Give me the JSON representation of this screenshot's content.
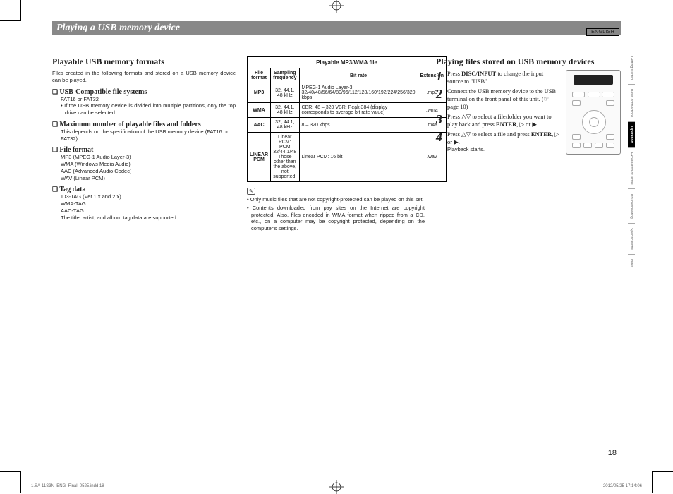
{
  "meta": {
    "lang_label": "ENGLISH",
    "page_number": "18"
  },
  "side_tabs": [
    "Getting started",
    "Basic connections",
    "Operation",
    "Explanation of terms",
    "Troubleshooting",
    "Specifications",
    "Index"
  ],
  "side_tabs_active_index": 2,
  "section_title": "Playing a USB memory device",
  "left": {
    "subhead": "Playable USB memory formats",
    "intro": "Files created in the following formats and stored on a USB memory device can be played.",
    "items": [
      {
        "head": "USB-Compatible file systems",
        "lines": [
          "FAT16 or FAT32",
          "• If the USB memory device is divided into multiple partitions, only the top drive can be selected."
        ]
      },
      {
        "head": "Maximum number of playable files and folders",
        "lines": [
          "This depends on the specification of the USB memory device (FAT16 or FAT32)."
        ]
      },
      {
        "head": "File format",
        "lines": [
          "MP3 (MPEG-1 Audio Layer-3)",
          "WMA (Windows Media Audio)",
          "AAC (Advanced Audio Codec)",
          "WAV (Linear PCM)"
        ]
      },
      {
        "head": "Tag data",
        "lines": [
          "ID3-TAG (Ver.1.x and 2.x)",
          "WMA-TAG",
          "AAC-TAG",
          "The title, artist, and album tag data are supported."
        ]
      }
    ]
  },
  "table": {
    "title": "Playable MP3/WMA file",
    "headers": [
      "File format",
      "Sampling frequency",
      "Bit rate",
      "Extension"
    ],
    "rows": [
      [
        "MP3",
        "32, 44.1, 48 kHz",
        "MPEG-1 Audio Layer-3, 32/40/48/56/64/80/96/112/128/160/192/224/256/320 kbps",
        ".mp3"
      ],
      [
        "WMA",
        "32, 44.1, 48 kHz",
        "CBR: 48 – 320 VBR: Peak 384 (display corresponds to average bit rate value)",
        ".wma"
      ],
      [
        "AAC",
        "32, 44.1, 48 kHz",
        "8 – 320 kbps",
        ".m4a"
      ],
      [
        "LINEAR PCM",
        "Linear PCM: PCM 32/44.1/48 Those other than the above, not supported.",
        "Linear PCM: 16 bit",
        ".wav"
      ]
    ]
  },
  "notes": [
    "• Only music files that are not copyright-protected can be played on this set.",
    "• Contents downloaded from pay sites on the Internet are copyright protected. Also, files encoded in WMA format when ripped from a CD, etc., on a computer may be copyright protected, depending on the computer's settings."
  ],
  "right": {
    "subhead": "Playing files stored on USB memory devices",
    "steps": [
      {
        "n": "1",
        "body": "Press <b>DISC/INPUT</b> to change the input source to \"USB\"."
      },
      {
        "n": "2",
        "body": "Connect the USB memory device to the USB terminal on the front panel of this unit. (☞page 10)"
      },
      {
        "n": "3",
        "body": "Press △▽ to select a file/folder you want to play back and press <b>ENTER</b>, ▷ or ▶."
      },
      {
        "n": "4",
        "body": "Press △▽ to select a file and press <b>ENTER</b>, ▷ or ▶.",
        "sub": "Playback starts."
      }
    ]
  },
  "footer": {
    "file": "1.SA-11S3N_ENG_Final_0525.indd   18",
    "timestamp": "2012/05/25   17:14:06"
  }
}
